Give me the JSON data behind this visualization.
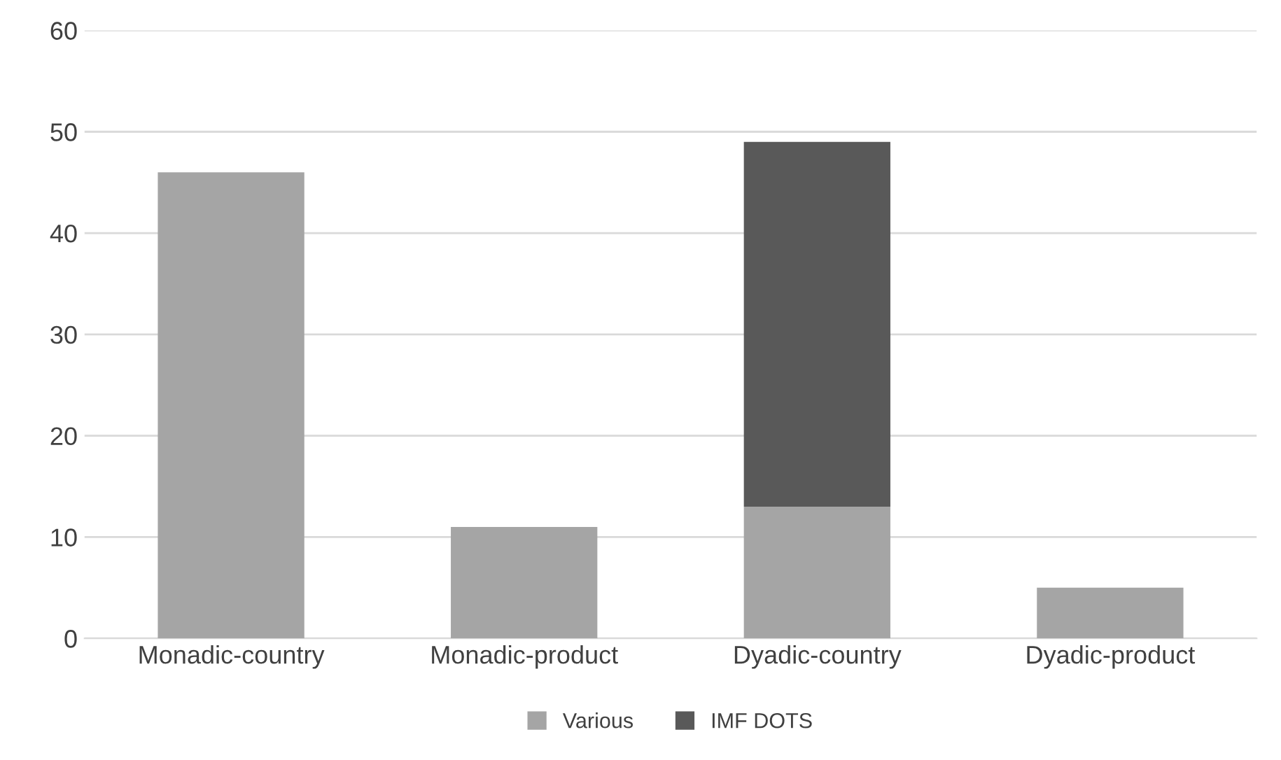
{
  "chart_data": {
    "type": "bar",
    "stacked": true,
    "categories": [
      "Monadic-country",
      "Monadic-product",
      "Dyadic-country",
      "Dyadic-product"
    ],
    "series": [
      {
        "name": "Various",
        "color": "#a5a5a5",
        "values": [
          46,
          11,
          13,
          5
        ]
      },
      {
        "name": "IMF DOTS",
        "color": "#595959",
        "values": [
          null,
          null,
          36,
          null
        ]
      }
    ],
    "ylim": [
      0,
      60
    ],
    "yticks": [
      0,
      10,
      20,
      30,
      40,
      50,
      60
    ],
    "grid": "y",
    "legend": "bottom"
  }
}
